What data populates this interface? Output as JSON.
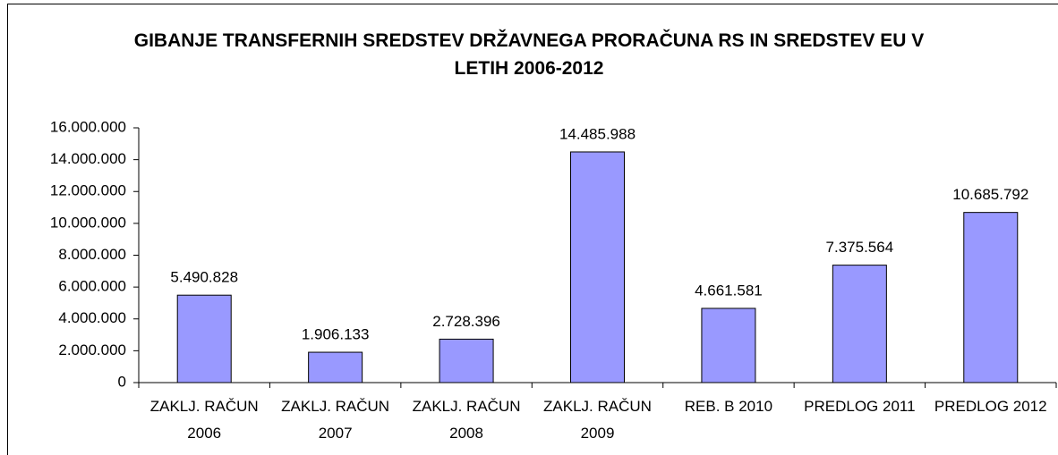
{
  "chart_data": {
    "type": "bar",
    "title": "GIBANJE TRANSFERNIH SREDSTEV DRŽAVNEGA PRORAČUNA RS IN SREDSTEV EU V LETIH 2006-2012",
    "categories": [
      "ZAKLJ. RAČUN 2006",
      "ZAKLJ. RAČUN 2007",
      "ZAKLJ. RAČUN 2008",
      "ZAKLJ. RAČUN 2009",
      "REB. B 2010",
      "PREDLOG 2011",
      "PREDLOG 2012"
    ],
    "values": [
      5490828,
      1906133,
      2728396,
      14485988,
      4661581,
      7375564,
      10685792
    ],
    "value_labels": [
      "5.490.828",
      "1.906.133",
      "2.728.396",
      "14.485.988",
      "4.661.581",
      "7.375.564",
      "10.685.792"
    ],
    "color": "#9999ff",
    "ylim": [
      0,
      16000000
    ],
    "yticks": [
      0,
      {
        "value": 2000000,
        "label": "2.000.000"
      },
      {
        "value": 4000000,
        "label": "4.000.000"
      },
      {
        "value": 6000000,
        "label": "6.000.000"
      },
      {
        "value": 8000000,
        "label": "8.000.000"
      },
      {
        "value": 10000000,
        "label": "10.000.000"
      },
      {
        "value": 12000000,
        "label": "12.000.000"
      },
      {
        "value": 14000000,
        "label": "14.000.000"
      },
      {
        "value": 16000000,
        "label": "16.000.000"
      }
    ],
    "grid": false
  }
}
